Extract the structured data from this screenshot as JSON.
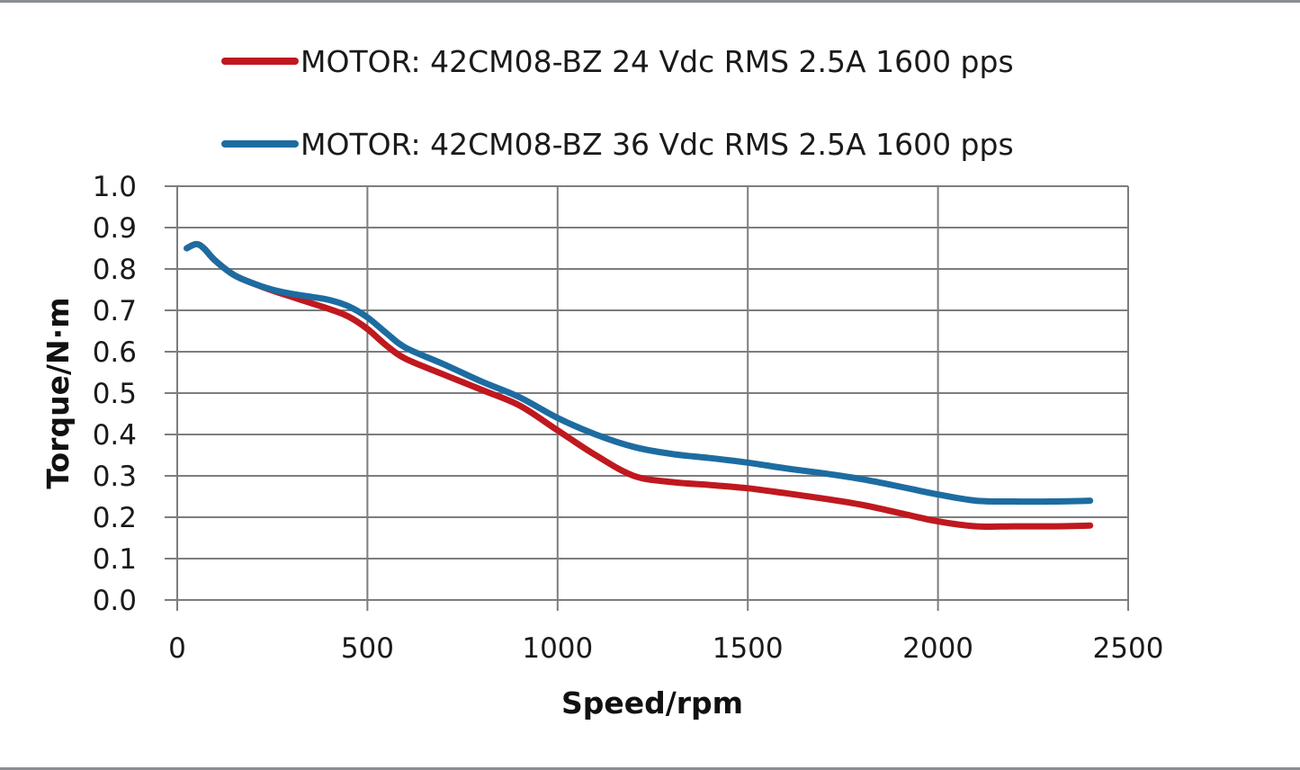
{
  "chart_data": {
    "type": "line",
    "title": "",
    "xlabel": "Speed/rpm",
    "ylabel": "Torque/N·m",
    "xlim": [
      0,
      2500
    ],
    "ylim": [
      0.0,
      1.0
    ],
    "x_ticks": [
      "0",
      "500",
      "1000",
      "1500",
      "2000",
      "2500"
    ],
    "y_ticks": [
      "0.0",
      "0.1",
      "0.2",
      "0.3",
      "0.4",
      "0.5",
      "0.6",
      "0.7",
      "0.8",
      "0.9",
      "1.0"
    ],
    "grid": true,
    "legend_position": "top",
    "series": [
      {
        "name": "MOTOR: 42CM08-BZ 24 Vdc RMS 2.5A 1600 pps",
        "color": "#c0181f",
        "x": [
          25,
          50,
          70,
          100,
          150,
          200,
          250,
          300,
          350,
          400,
          450,
          500,
          550,
          600,
          700,
          800,
          900,
          1000,
          1100,
          1200,
          1300,
          1400,
          1500,
          1600,
          1700,
          1800,
          1900,
          2000,
          2100,
          2200,
          2300,
          2400
        ],
        "y": [
          0.85,
          0.86,
          0.85,
          0.82,
          0.785,
          0.765,
          0.748,
          0.733,
          0.718,
          0.703,
          0.685,
          0.655,
          0.615,
          0.583,
          0.545,
          0.508,
          0.47,
          0.41,
          0.35,
          0.3,
          0.285,
          0.278,
          0.27,
          0.258,
          0.245,
          0.23,
          0.21,
          0.19,
          0.178,
          0.178,
          0.178,
          0.18
        ]
      },
      {
        "name": "MOTOR: 42CM08-BZ 36 Vdc RMS 2.5A 1600 pps",
        "color": "#1d6ca1",
        "x": [
          25,
          50,
          70,
          100,
          150,
          200,
          250,
          300,
          350,
          400,
          450,
          500,
          550,
          600,
          700,
          800,
          900,
          1000,
          1100,
          1200,
          1300,
          1400,
          1500,
          1600,
          1700,
          1800,
          1900,
          2000,
          2100,
          2200,
          2300,
          2400
        ],
        "y": [
          0.85,
          0.86,
          0.85,
          0.82,
          0.785,
          0.765,
          0.75,
          0.74,
          0.733,
          0.725,
          0.71,
          0.683,
          0.645,
          0.61,
          0.57,
          0.528,
          0.49,
          0.44,
          0.4,
          0.37,
          0.353,
          0.343,
          0.332,
          0.318,
          0.306,
          0.292,
          0.274,
          0.255,
          0.24,
          0.238,
          0.238,
          0.24
        ]
      }
    ]
  }
}
